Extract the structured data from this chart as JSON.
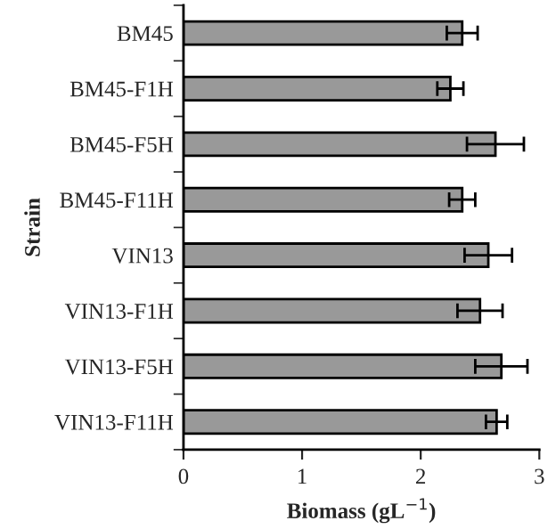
{
  "chart_data": {
    "type": "bar",
    "orientation": "horizontal",
    "xlabel": "Biomass (gL$^{−1}$)",
    "ylabel": "Strain",
    "categories": [
      "BM45",
      "BM45-F1H",
      "BM45-F5H",
      "BM45-F11H",
      "VIN13",
      "VIN13-F1H",
      "VIN13-F5H",
      "VIN13-F11H"
    ],
    "values": [
      2.35,
      2.25,
      2.63,
      2.35,
      2.57,
      2.5,
      2.68,
      2.64
    ],
    "errors": [
      0.13,
      0.11,
      0.24,
      0.11,
      0.2,
      0.19,
      0.22,
      0.09
    ],
    "color": "#999999",
    "xlim": [
      0,
      3
    ],
    "xticks": [
      0,
      1,
      2,
      3
    ],
    "grid": false,
    "legend": false
  }
}
